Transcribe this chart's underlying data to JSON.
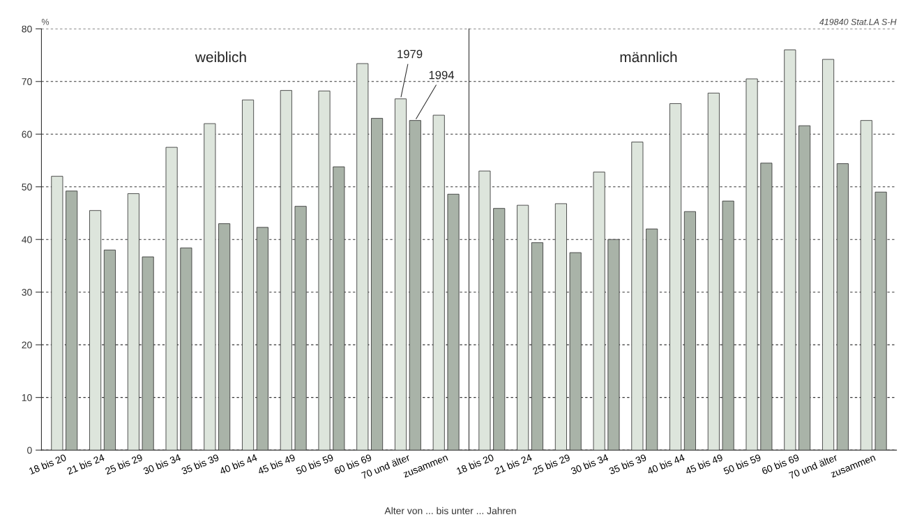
{
  "chart_data": [
    {
      "type": "bar",
      "title": "weiblich",
      "xlabel": "Alter von ... bis unter ... Jahren",
      "ylabel": "%",
      "categories": [
        "18 bis 20",
        "21 bis 24",
        "25 bis 29",
        "30 bis 34",
        "35 bis 39",
        "40 bis 44",
        "45 bis 49",
        "50 bis 59",
        "60 bis 69",
        "70 und älter",
        "zusammen"
      ],
      "series": [
        {
          "name": "1979",
          "color": "#dde5dc",
          "values": [
            52,
            45.5,
            48.7,
            57.5,
            62,
            66.5,
            68.3,
            68.2,
            73.4,
            66.7,
            63.6
          ]
        },
        {
          "name": "1994",
          "color": "#a9b3a8",
          "values": [
            49.2,
            38,
            36.7,
            38.4,
            43,
            42.3,
            46.3,
            53.8,
            63,
            62.6,
            48.6
          ]
        }
      ],
      "ylim": [
        0,
        80
      ],
      "yticks": [
        0,
        10,
        20,
        30,
        40,
        50,
        60,
        70,
        80
      ],
      "grid": "y",
      "legend": false
    },
    {
      "type": "bar",
      "title": "männlich",
      "categories": [
        "18 bis 20",
        "21 bis 24",
        "25 bis 29",
        "30 bis 34",
        "35 bis 39",
        "40 bis 44",
        "45 bis 49",
        "50 bis 59",
        "60 bis 69",
        "70 und älter",
        "zusammen"
      ],
      "series": [
        {
          "color": "#dde5dc",
          "values": [
            53,
            46.5,
            46.8,
            52.8,
            58.5,
            65.8,
            67.8,
            70.5,
            76,
            74.2,
            62.6
          ]
        },
        {
          "color": "#a9b3a8",
          "values": [
            45.9,
            39.4,
            37.5,
            40,
            42,
            45.3,
            47.3,
            54.5,
            61.6,
            54.4,
            49
          ]
        }
      ],
      "ylim": [
        0,
        80
      ],
      "yticks": [
        0,
        10,
        20,
        30,
        40,
        50,
        60,
        70,
        80
      ],
      "grid": "y",
      "legend": false,
      "tick_labels": "x",
      "annotations": [
        "419840 Stat.LA S-H"
      ]
    }
  ]
}
